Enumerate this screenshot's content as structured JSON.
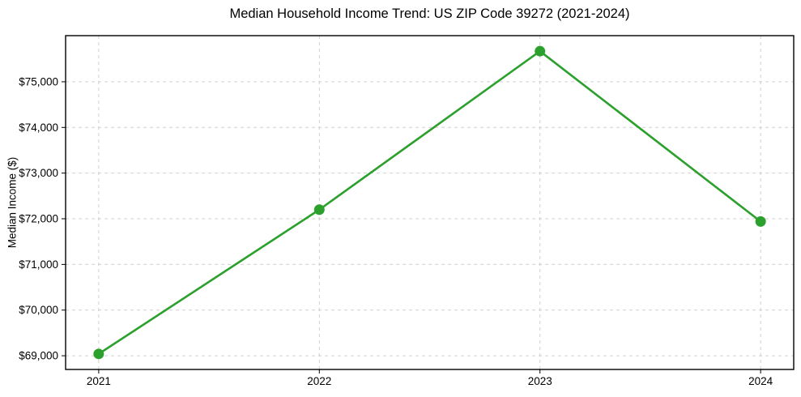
{
  "chart_data": {
    "type": "line",
    "title": "Median Household Income Trend: US ZIP Code 39272 (2021-2024)",
    "ylabel": "Median Income ($)",
    "xlabel": "",
    "x": [
      2021,
      2022,
      2023,
      2024
    ],
    "x_tick_labels": [
      "2021",
      "2022",
      "2023",
      "2024"
    ],
    "series": [
      {
        "name": "Median Household Income",
        "values": [
          69040,
          72200,
          75670,
          71940
        ]
      }
    ],
    "yticks": [
      69000,
      70000,
      71000,
      72000,
      73000,
      74000,
      75000
    ],
    "ytick_labels": [
      "$69,000",
      "$70,000",
      "$71,000",
      "$72,000",
      "$73,000",
      "$74,000",
      "$75,000"
    ],
    "ylim": [
      68700,
      76010
    ],
    "xlim": [
      2020.85,
      2024.15
    ],
    "grid": true,
    "grid_style": "dashed",
    "legend_position": "none",
    "line_color": "#2ca02c",
    "marker": "circle",
    "marker_radius": 6.5,
    "background_color": "#ffffff",
    "spine_color": "#000000",
    "grid_color": "#cfcfcf"
  }
}
